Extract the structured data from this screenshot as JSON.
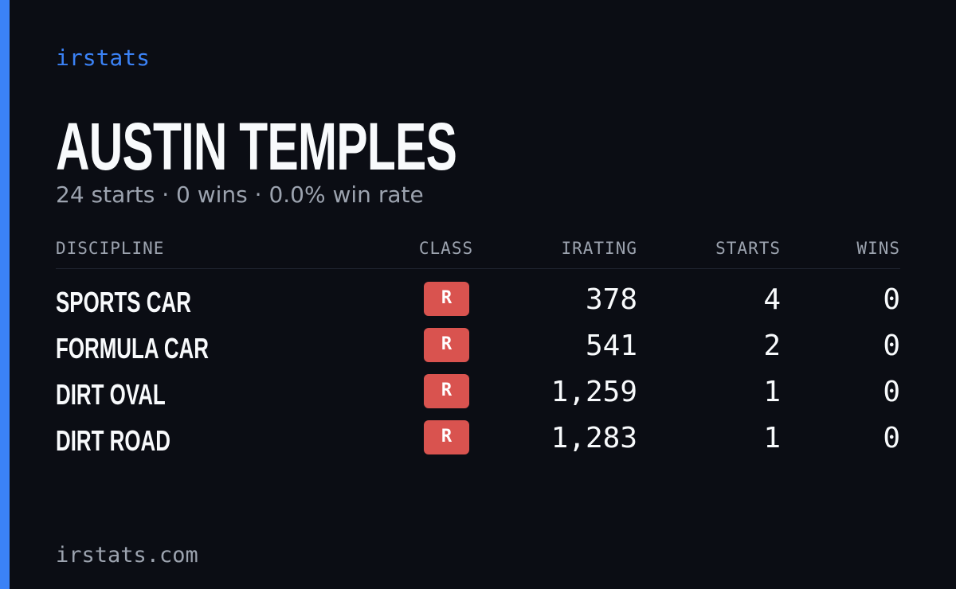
{
  "brand": "irstats",
  "driver": {
    "name": "AUSTIN TEMPLES",
    "summary": "24 starts · 0 wins · 0.0% win rate"
  },
  "table": {
    "headers": [
      "DISCIPLINE",
      "CLASS",
      "IRATING",
      "STARTS",
      "WINS"
    ],
    "rows": [
      [
        "SPORTS CAR",
        "R",
        "378",
        "4",
        "0"
      ],
      [
        "FORMULA CAR",
        "R",
        "541",
        "2",
        "0"
      ],
      [
        "DIRT OVAL",
        "R",
        "1,259",
        "1",
        "0"
      ],
      [
        "DIRT ROAD",
        "R",
        "1,283",
        "1",
        "0"
      ]
    ]
  },
  "footer": "irstats.com"
}
